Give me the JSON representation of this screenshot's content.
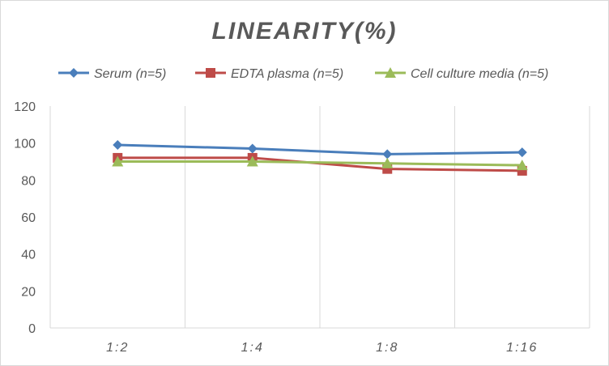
{
  "chart_data": {
    "type": "line",
    "title": "LINEARITY(%)",
    "xlabel": "",
    "ylabel": "",
    "categories": [
      "1:2",
      "1:4",
      "1:8",
      "1:16"
    ],
    "ylim": [
      0,
      120
    ],
    "yticks": [
      0,
      20,
      40,
      60,
      80,
      100,
      120
    ],
    "grid": "vertical",
    "legend_position": "top",
    "series": [
      {
        "name": "Serum (n=5)",
        "values": [
          99,
          97,
          94,
          95
        ],
        "color": "#4a7ebb",
        "marker": "diamond"
      },
      {
        "name": "EDTA plasma (n=5)",
        "values": [
          92,
          92,
          86,
          85
        ],
        "color": "#be4b48",
        "marker": "square"
      },
      {
        "name": "Cell culture media (n=5)",
        "values": [
          90,
          90,
          89,
          88
        ],
        "color": "#9bbb59",
        "marker": "triangle"
      }
    ]
  }
}
